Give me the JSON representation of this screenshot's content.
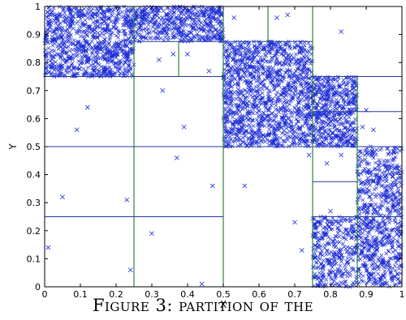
{
  "chart_data": {
    "type": "scatter",
    "xlabel": "X",
    "ylabel": "Y",
    "xlim": [
      0,
      1
    ],
    "ylim": [
      0,
      1
    ],
    "x_ticks": [
      0,
      0.1,
      0.2,
      0.3,
      0.4,
      0.5,
      0.6,
      0.7,
      0.8,
      0.9,
      1
    ],
    "y_ticks": [
      0,
      0.1,
      0.2,
      0.3,
      0.4,
      0.5,
      0.6,
      0.7,
      0.8,
      0.9,
      1
    ],
    "x_tick_labels": [
      "0",
      "0.1",
      "0.2",
      "0.3",
      "0.4",
      "0.5",
      "0.6",
      "0.7",
      "0.8",
      "0.9",
      "1"
    ],
    "y_tick_labels": [
      "0",
      "0.1",
      "0.2",
      "0.3",
      "0.4",
      "0.5",
      "0.6",
      "0.7",
      "0.8",
      "0.9",
      "1"
    ],
    "marker": "x",
    "point_color": "#1f2fd6",
    "blue_partition_color": "#1f3a9e",
    "green_partition_color": "#1a7a2a",
    "sparse_points": [
      {
        "x": 0.01,
        "y": 0.14
      },
      {
        "x": 0.05,
        "y": 0.32
      },
      {
        "x": 0.09,
        "y": 0.56
      },
      {
        "x": 0.12,
        "y": 0.64
      },
      {
        "x": 0.23,
        "y": 0.31
      },
      {
        "x": 0.24,
        "y": 0.06
      },
      {
        "x": 0.3,
        "y": 0.19
      },
      {
        "x": 0.33,
        "y": 0.7
      },
      {
        "x": 0.37,
        "y": 0.46
      },
      {
        "x": 0.39,
        "y": 0.57
      },
      {
        "x": 0.44,
        "y": 0.01
      },
      {
        "x": 0.47,
        "y": 0.36
      },
      {
        "x": 0.56,
        "y": 0.36
      },
      {
        "x": 0.7,
        "y": 0.23
      },
      {
        "x": 0.72,
        "y": 0.13
      },
      {
        "x": 0.74,
        "y": 0.47
      },
      {
        "x": 0.79,
        "y": 0.44
      },
      {
        "x": 0.8,
        "y": 0.27
      },
      {
        "x": 0.83,
        "y": 0.47
      },
      {
        "x": 0.89,
        "y": 0.57
      },
      {
        "x": 0.9,
        "y": 0.63
      },
      {
        "x": 0.92,
        "y": 0.56
      },
      {
        "x": 0.36,
        "y": 0.83
      },
      {
        "x": 0.32,
        "y": 0.81
      },
      {
        "x": 0.4,
        "y": 0.83
      },
      {
        "x": 0.46,
        "y": 0.77
      },
      {
        "x": 0.53,
        "y": 0.96
      },
      {
        "x": 0.65,
        "y": 0.96
      },
      {
        "x": 0.68,
        "y": 0.97
      },
      {
        "x": 0.83,
        "y": 0.91
      }
    ],
    "dense_regions": [
      {
        "x": [
          0.0,
          0.25
        ],
        "y": [
          0.75,
          1.0
        ],
        "count": 900
      },
      {
        "x": [
          0.25,
          0.5
        ],
        "y": [
          0.875,
          1.0
        ],
        "count": 500
      },
      {
        "x": [
          0.5,
          0.75
        ],
        "y": [
          0.5,
          0.875
        ],
        "count": 1300
      },
      {
        "x": [
          0.75,
          0.875
        ],
        "y": [
          0.625,
          0.75
        ],
        "count": 250
      },
      {
        "x": [
          0.75,
          0.875
        ],
        "y": [
          0.5,
          0.625
        ],
        "count": 250
      },
      {
        "x": [
          0.875,
          1.0
        ],
        "y": [
          0.0,
          0.5
        ],
        "count": 700
      },
      {
        "x": [
          0.75,
          0.875
        ],
        "y": [
          0.0,
          0.25
        ],
        "count": 350
      }
    ],
    "partitions": [
      {
        "x1": 0,
        "y1": 0.25,
        "x2": 0.5,
        "y2": 0.25,
        "color": "blue"
      },
      {
        "x1": 0,
        "y1": 0.5,
        "x2": 0.5,
        "y2": 0.5,
        "color": "blue"
      },
      {
        "x1": 0,
        "y1": 0.75,
        "x2": 0.5,
        "y2": 0.75,
        "color": "blue"
      },
      {
        "x1": 0.25,
        "y1": 0.875,
        "x2": 0.5,
        "y2": 0.875,
        "color": "blue"
      },
      {
        "x1": 0.5,
        "y1": 0.5,
        "x2": 1.0,
        "y2": 0.5,
        "color": "blue"
      },
      {
        "x1": 0.5,
        "y1": 0.875,
        "x2": 0.75,
        "y2": 0.875,
        "color": "blue"
      },
      {
        "x1": 0.75,
        "y1": 0.625,
        "x2": 1.0,
        "y2": 0.625,
        "color": "blue"
      },
      {
        "x1": 0.75,
        "y1": 0.75,
        "x2": 1.0,
        "y2": 0.75,
        "color": "blue"
      },
      {
        "x1": 0.75,
        "y1": 0.25,
        "x2": 1.0,
        "y2": 0.25,
        "color": "blue"
      },
      {
        "x1": 0.75,
        "y1": 0.375,
        "x2": 0.875,
        "y2": 0.375,
        "color": "blue"
      },
      {
        "x1": 0.25,
        "y1": 0.0,
        "x2": 0.25,
        "y2": 1.0,
        "color": "green"
      },
      {
        "x1": 0.5,
        "y1": 0.0,
        "x2": 0.5,
        "y2": 1.0,
        "color": "green"
      },
      {
        "x1": 0.75,
        "y1": 0.0,
        "x2": 0.75,
        "y2": 1.0,
        "color": "green"
      },
      {
        "x1": 0.375,
        "y1": 0.75,
        "x2": 0.375,
        "y2": 0.875,
        "color": "green"
      },
      {
        "x1": 0.625,
        "y1": 0.875,
        "x2": 0.625,
        "y2": 1.0,
        "color": "green"
      },
      {
        "x1": 0.875,
        "y1": 0.0,
        "x2": 0.875,
        "y2": 0.75,
        "color": "green"
      }
    ]
  },
  "caption": "Figure 3: partition of the"
}
